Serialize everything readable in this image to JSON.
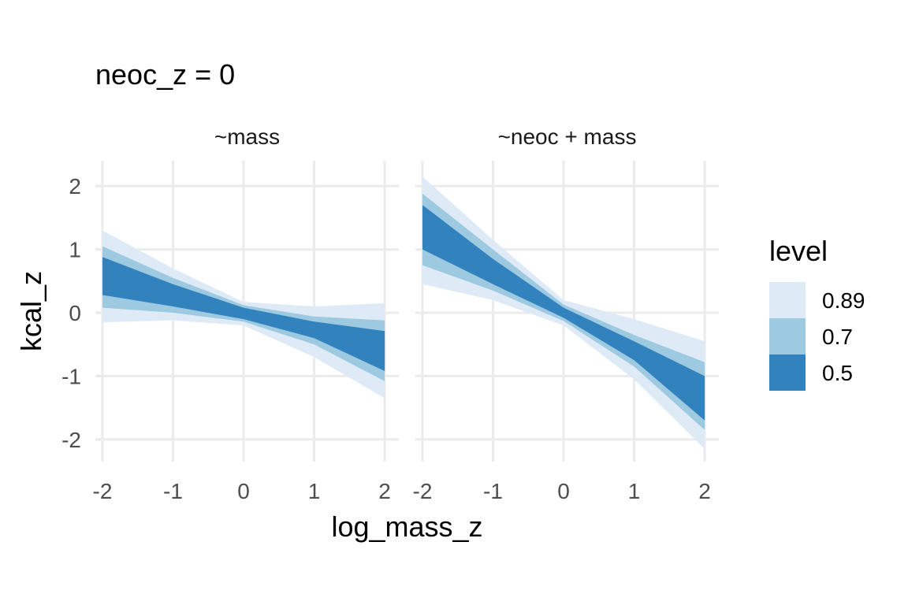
{
  "chart_data": {
    "type": "area",
    "title": "neoc_z = 0",
    "xlabel": "log_mass_z",
    "ylabel": "kcal_z",
    "xlim": [
      -2.1,
      2.2
    ],
    "ylim": [
      -2.35,
      2.4
    ],
    "x_ticks": [
      -2,
      -1,
      0,
      1,
      2
    ],
    "y_ticks": [
      -2,
      -1,
      0,
      1,
      2
    ],
    "x_tick_labels": [
      "-2",
      "-1",
      "0",
      "1",
      "2"
    ],
    "y_tick_labels": [
      "-2",
      "-1",
      "0",
      "1",
      "2"
    ],
    "grid": true,
    "legend": {
      "title": "level",
      "position": "right",
      "entries": [
        {
          "label": "0.89",
          "color": "#deebf7"
        },
        {
          "label": "0.7",
          "color": "#9ecae1"
        },
        {
          "label": "0.5",
          "color": "#3182bd"
        }
      ]
    },
    "panels": [
      {
        "strip": "~mass",
        "x": [
          -2,
          -1,
          0,
          1,
          2
        ],
        "bands": [
          {
            "level": "0.89",
            "lower": [
              -0.15,
              -0.12,
              -0.2,
              -0.7,
              -1.35
            ],
            "upper": [
              1.3,
              0.7,
              0.17,
              0.1,
              0.15
            ]
          },
          {
            "level": "0.7",
            "lower": [
              0.08,
              0.0,
              -0.14,
              -0.5,
              -1.08
            ],
            "upper": [
              1.05,
              0.55,
              0.12,
              -0.06,
              -0.12
            ]
          },
          {
            "level": "0.5",
            "lower": [
              0.28,
              0.1,
              -0.1,
              -0.4,
              -0.92
            ],
            "upper": [
              0.88,
              0.45,
              0.08,
              -0.14,
              -0.29
            ]
          }
        ]
      },
      {
        "strip": "~neoc + mass",
        "x": [
          -2,
          -1,
          0,
          1,
          2
        ],
        "bands": [
          {
            "level": "0.89",
            "lower": [
              0.45,
              0.2,
              -0.2,
              -1.05,
              -2.15
            ],
            "upper": [
              2.15,
              1.15,
              0.2,
              -0.1,
              -0.45
            ]
          },
          {
            "level": "0.7",
            "lower": [
              0.75,
              0.35,
              -0.13,
              -0.85,
              -1.85
            ],
            "upper": [
              1.88,
              1.0,
              0.13,
              -0.35,
              -0.78
            ]
          },
          {
            "level": "0.5",
            "lower": [
              1.0,
              0.45,
              -0.08,
              -0.75,
              -1.7
            ],
            "upper": [
              1.7,
              0.85,
              0.08,
              -0.45,
              -1.0
            ]
          }
        ]
      }
    ]
  }
}
